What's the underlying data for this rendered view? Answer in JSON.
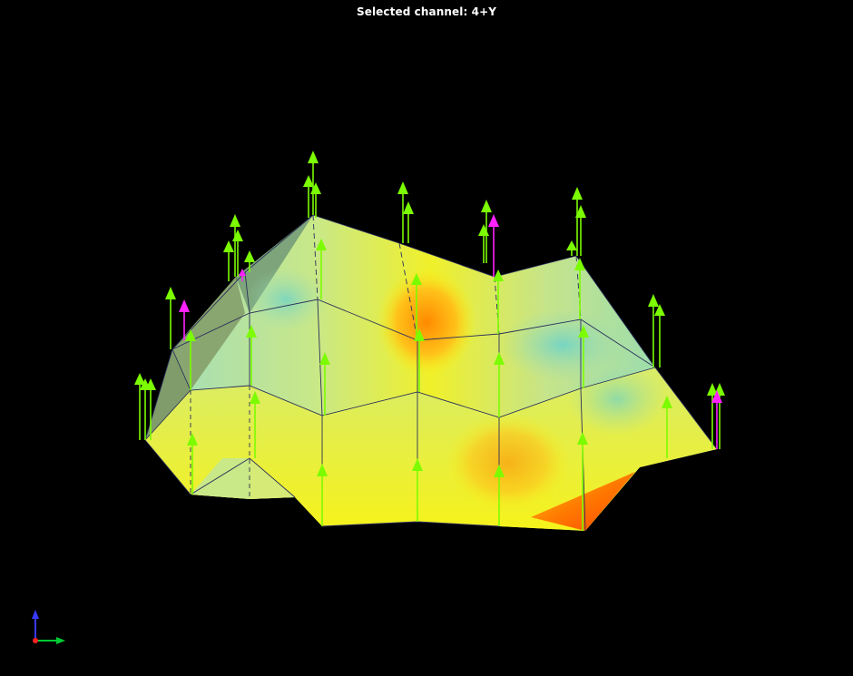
{
  "viewer": {
    "title": "Selected channel: 4+Y"
  },
  "colors": {
    "background": "#000000",
    "title_text": "#ffffff",
    "mesh_edges": "#2a2f5a",
    "arrow_default": "#7CFC00",
    "arrow_selected": "#ff22ff",
    "surface_low": "#79d6c4",
    "surface_mid": "#f2f22a",
    "surface_high": "#ff5500",
    "axis_z": "#3a3aff",
    "axis_x": "#00cc33",
    "axis_origin": "#ff2020"
  },
  "icons": {
    "triad": "coordinate-axes-icon"
  }
}
